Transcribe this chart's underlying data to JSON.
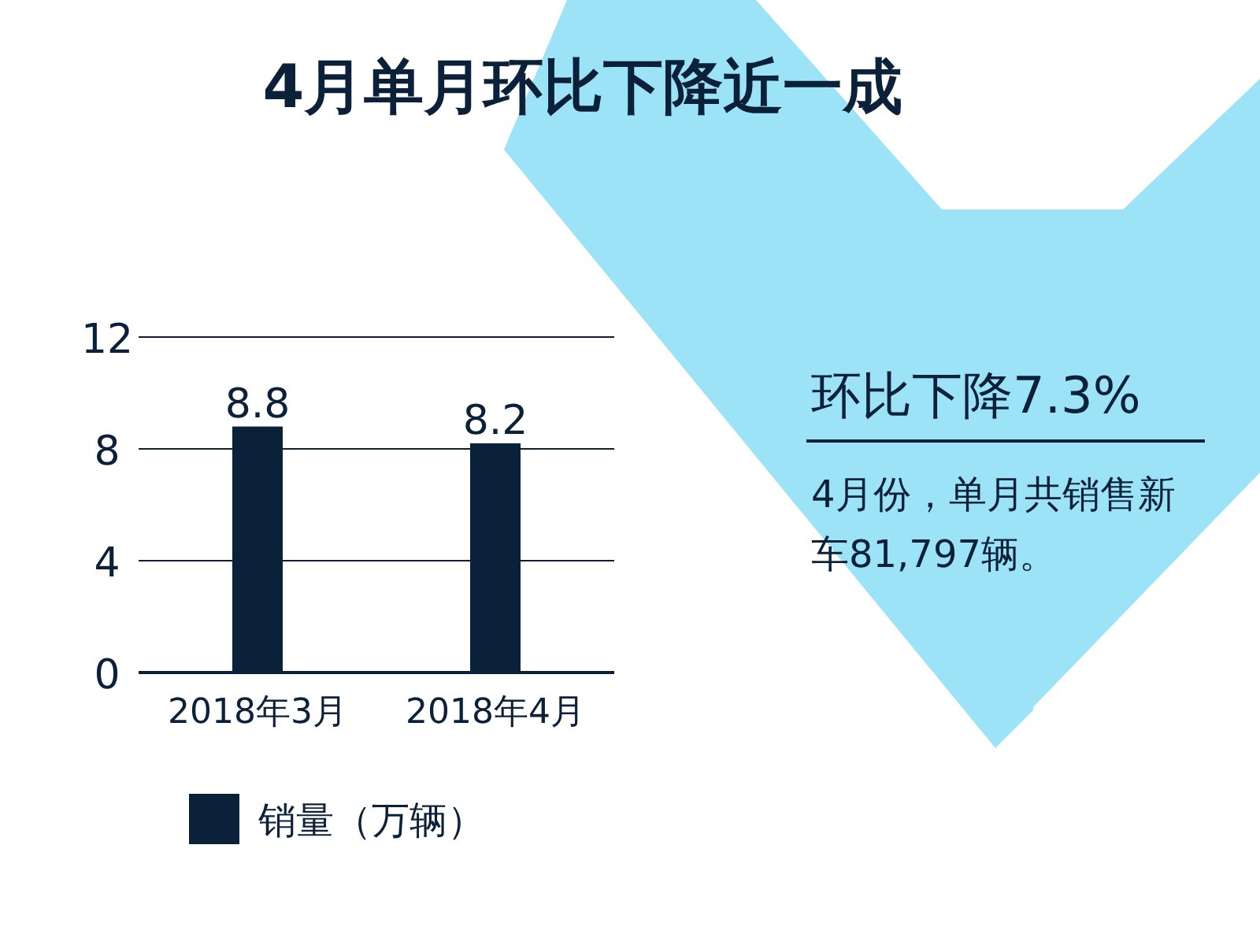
{
  "chart_data": {
    "type": "bar",
    "title": "4月单月环比下降近一成",
    "categories": [
      "2018年3月",
      "2018年4月"
    ],
    "series": [
      {
        "name": "销量（万辆）",
        "color": "#0b2139",
        "values": [
          8.8,
          8.2
        ]
      }
    ],
    "ylim": [
      0,
      12
    ],
    "yticks": [
      0,
      4,
      8,
      12
    ],
    "grid": "y",
    "legend": "bottom",
    "data_labels": true,
    "annotations": [
      "环比下降7.3%",
      "4月份，单月共销售新车81,797辆。"
    ]
  }
}
